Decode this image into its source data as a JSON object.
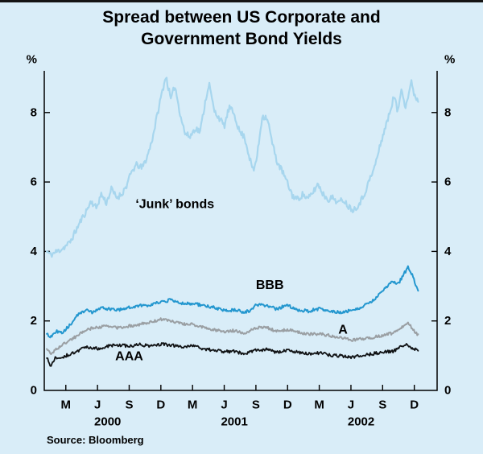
{
  "page": {
    "title_line1": "Spread between US Corporate and",
    "title_line2": "Government Bond Yields",
    "source": "Source: Bloomberg"
  },
  "chart_data": {
    "type": "line",
    "title": "Spread between US Corporate and Government Bond Yields",
    "ylabel": "%",
    "xlabel": "",
    "unit_label_left": "%",
    "unit_label_right": "%",
    "x_range": [
      2000.0,
      2003.1
    ],
    "y_range": [
      0,
      9.2
    ],
    "y_ticks": [
      0,
      2,
      4,
      6,
      8
    ],
    "x_ticks": [
      {
        "label": "M",
        "x": 2000.17
      },
      {
        "label": "J",
        "x": 2000.42
      },
      {
        "label": "S",
        "x": 2000.67
      },
      {
        "label": "D",
        "x": 2000.92
      },
      {
        "label": "M",
        "x": 2001.17
      },
      {
        "label": "J",
        "x": 2001.42
      },
      {
        "label": "S",
        "x": 2001.67
      },
      {
        "label": "D",
        "x": 2001.92
      },
      {
        "label": "M",
        "x": 2002.17
      },
      {
        "label": "J",
        "x": 2002.42
      },
      {
        "label": "S",
        "x": 2002.67
      },
      {
        "label": "D",
        "x": 2002.92
      }
    ],
    "year_labels": [
      {
        "label": "2000",
        "x": 2000.5
      },
      {
        "label": "2001",
        "x": 2001.5
      },
      {
        "label": "2002",
        "x": 2002.5
      }
    ],
    "background": "#d9edf8",
    "axis_color": "#000000",
    "series": [
      {
        "name": "'Junk' bonds",
        "id": "junk-bonds",
        "color": "#a7d6ee",
        "width": 2.2,
        "noise": 0.09,
        "points": [
          [
            2000.02,
            4.0
          ],
          [
            2000.05,
            3.9
          ],
          [
            2000.1,
            4.0
          ],
          [
            2000.15,
            4.1
          ],
          [
            2000.2,
            4.25
          ],
          [
            2000.25,
            4.6
          ],
          [
            2000.29,
            4.9
          ],
          [
            2000.33,
            5.15
          ],
          [
            2000.37,
            5.45
          ],
          [
            2000.41,
            5.25
          ],
          [
            2000.45,
            5.65
          ],
          [
            2000.49,
            5.4
          ],
          [
            2000.53,
            5.8
          ],
          [
            2000.57,
            5.55
          ],
          [
            2000.61,
            5.65
          ],
          [
            2000.65,
            5.9
          ],
          [
            2000.69,
            6.3
          ],
          [
            2000.73,
            6.5
          ],
          [
            2000.77,
            6.4
          ],
          [
            2000.81,
            6.7
          ],
          [
            2000.85,
            7.2
          ],
          [
            2000.89,
            7.9
          ],
          [
            2000.93,
            8.6
          ],
          [
            2000.96,
            9.05
          ],
          [
            2001.0,
            8.35
          ],
          [
            2001.03,
            8.8
          ],
          [
            2001.07,
            8.0
          ],
          [
            2001.11,
            7.4
          ],
          [
            2001.15,
            7.3
          ],
          [
            2001.19,
            7.55
          ],
          [
            2001.23,
            7.45
          ],
          [
            2001.27,
            8.3
          ],
          [
            2001.3,
            8.85
          ],
          [
            2001.34,
            8.05
          ],
          [
            2001.38,
            7.85
          ],
          [
            2001.42,
            7.6
          ],
          [
            2001.46,
            8.15
          ],
          [
            2001.5,
            7.95
          ],
          [
            2001.54,
            7.45
          ],
          [
            2001.58,
            7.3
          ],
          [
            2001.62,
            6.7
          ],
          [
            2001.65,
            6.3
          ],
          [
            2001.68,
            6.75
          ],
          [
            2001.72,
            7.9
          ],
          [
            2001.76,
            7.85
          ],
          [
            2001.8,
            7.1
          ],
          [
            2001.84,
            6.55
          ],
          [
            2001.88,
            6.3
          ],
          [
            2001.92,
            5.95
          ],
          [
            2001.96,
            5.6
          ],
          [
            2002.0,
            5.5
          ],
          [
            2002.04,
            5.65
          ],
          [
            2002.08,
            5.5
          ],
          [
            2002.12,
            5.7
          ],
          [
            2002.16,
            5.95
          ],
          [
            2002.2,
            5.65
          ],
          [
            2002.24,
            5.5
          ],
          [
            2002.28,
            5.55
          ],
          [
            2002.32,
            5.4
          ],
          [
            2002.36,
            5.5
          ],
          [
            2002.4,
            5.3
          ],
          [
            2002.44,
            5.2
          ],
          [
            2002.48,
            5.35
          ],
          [
            2002.52,
            5.6
          ],
          [
            2002.56,
            6.0
          ],
          [
            2002.6,
            6.35
          ],
          [
            2002.64,
            6.9
          ],
          [
            2002.68,
            7.45
          ],
          [
            2002.72,
            7.9
          ],
          [
            2002.76,
            8.5
          ],
          [
            2002.79,
            8.0
          ],
          [
            2002.82,
            8.75
          ],
          [
            2002.85,
            8.15
          ],
          [
            2002.88,
            8.6
          ],
          [
            2002.9,
            8.9
          ],
          [
            2002.92,
            8.5
          ],
          [
            2002.95,
            8.35
          ]
        ]
      },
      {
        "name": "BBB",
        "id": "bbb",
        "color": "#2497cf",
        "width": 2.0,
        "noise": 0.045,
        "points": [
          [
            2000.02,
            1.6
          ],
          [
            2000.06,
            1.55
          ],
          [
            2000.1,
            1.7
          ],
          [
            2000.14,
            1.65
          ],
          [
            2000.18,
            1.8
          ],
          [
            2000.22,
            1.95
          ],
          [
            2000.26,
            2.15
          ],
          [
            2000.3,
            2.25
          ],
          [
            2000.34,
            2.3
          ],
          [
            2000.38,
            2.25
          ],
          [
            2000.42,
            2.3
          ],
          [
            2000.46,
            2.4
          ],
          [
            2000.5,
            2.35
          ],
          [
            2000.58,
            2.3
          ],
          [
            2000.67,
            2.4
          ],
          [
            2000.75,
            2.45
          ],
          [
            2000.83,
            2.45
          ],
          [
            2000.92,
            2.55
          ],
          [
            2001.0,
            2.6
          ],
          [
            2001.08,
            2.5
          ],
          [
            2001.17,
            2.5
          ],
          [
            2001.25,
            2.45
          ],
          [
            2001.33,
            2.4
          ],
          [
            2001.42,
            2.3
          ],
          [
            2001.5,
            2.32
          ],
          [
            2001.58,
            2.25
          ],
          [
            2001.63,
            2.3
          ],
          [
            2001.67,
            2.45
          ],
          [
            2001.75,
            2.45
          ],
          [
            2001.83,
            2.35
          ],
          [
            2001.92,
            2.45
          ],
          [
            2002.0,
            2.32
          ],
          [
            2002.08,
            2.28
          ],
          [
            2002.17,
            2.35
          ],
          [
            2002.25,
            2.3
          ],
          [
            2002.33,
            2.25
          ],
          [
            2002.42,
            2.3
          ],
          [
            2002.5,
            2.4
          ],
          [
            2002.58,
            2.55
          ],
          [
            2002.63,
            2.7
          ],
          [
            2002.67,
            2.9
          ],
          [
            2002.71,
            3.0
          ],
          [
            2002.75,
            3.15
          ],
          [
            2002.79,
            3.05
          ],
          [
            2002.83,
            3.3
          ],
          [
            2002.87,
            3.55
          ],
          [
            2002.9,
            3.35
          ],
          [
            2002.93,
            3.05
          ],
          [
            2002.95,
            2.9
          ]
        ]
      },
      {
        "name": "A",
        "id": "a",
        "color": "#9a9fa3",
        "width": 2.0,
        "noise": 0.04,
        "points": [
          [
            2000.02,
            1.2
          ],
          [
            2000.05,
            1.05
          ],
          [
            2000.1,
            1.2
          ],
          [
            2000.14,
            1.3
          ],
          [
            2000.18,
            1.4
          ],
          [
            2000.25,
            1.55
          ],
          [
            2000.33,
            1.75
          ],
          [
            2000.42,
            1.82
          ],
          [
            2000.5,
            1.85
          ],
          [
            2000.58,
            1.8
          ],
          [
            2000.67,
            1.85
          ],
          [
            2000.75,
            1.9
          ],
          [
            2000.83,
            1.95
          ],
          [
            2000.92,
            2.05
          ],
          [
            2001.0,
            2.0
          ],
          [
            2001.08,
            1.92
          ],
          [
            2001.17,
            1.9
          ],
          [
            2001.25,
            1.82
          ],
          [
            2001.33,
            1.75
          ],
          [
            2001.42,
            1.7
          ],
          [
            2001.5,
            1.72
          ],
          [
            2001.58,
            1.65
          ],
          [
            2001.67,
            1.8
          ],
          [
            2001.75,
            1.82
          ],
          [
            2001.83,
            1.7
          ],
          [
            2001.92,
            1.75
          ],
          [
            2002.0,
            1.68
          ],
          [
            2002.08,
            1.62
          ],
          [
            2002.17,
            1.63
          ],
          [
            2002.25,
            1.58
          ],
          [
            2002.33,
            1.52
          ],
          [
            2002.42,
            1.45
          ],
          [
            2002.5,
            1.48
          ],
          [
            2002.58,
            1.52
          ],
          [
            2002.67,
            1.58
          ],
          [
            2002.75,
            1.65
          ],
          [
            2002.83,
            1.85
          ],
          [
            2002.87,
            1.95
          ],
          [
            2002.91,
            1.75
          ],
          [
            2002.95,
            1.6
          ]
        ]
      },
      {
        "name": "AAA",
        "id": "aaa",
        "color": "#101214",
        "width": 1.8,
        "noise": 0.045,
        "points": [
          [
            2000.02,
            0.95
          ],
          [
            2000.05,
            0.68
          ],
          [
            2000.09,
            0.95
          ],
          [
            2000.13,
            0.9
          ],
          [
            2000.17,
            1.0
          ],
          [
            2000.25,
            1.1
          ],
          [
            2000.33,
            1.25
          ],
          [
            2000.42,
            1.2
          ],
          [
            2000.5,
            1.28
          ],
          [
            2000.58,
            1.3
          ],
          [
            2000.67,
            1.28
          ],
          [
            2000.75,
            1.32
          ],
          [
            2000.83,
            1.28
          ],
          [
            2000.92,
            1.33
          ],
          [
            2001.0,
            1.3
          ],
          [
            2001.08,
            1.26
          ],
          [
            2001.17,
            1.28
          ],
          [
            2001.25,
            1.2
          ],
          [
            2001.33,
            1.16
          ],
          [
            2001.42,
            1.12
          ],
          [
            2001.5,
            1.12
          ],
          [
            2001.58,
            1.05
          ],
          [
            2001.67,
            1.15
          ],
          [
            2001.75,
            1.18
          ],
          [
            2001.83,
            1.1
          ],
          [
            2001.92,
            1.15
          ],
          [
            2002.0,
            1.1
          ],
          [
            2002.08,
            1.05
          ],
          [
            2002.17,
            1.08
          ],
          [
            2002.25,
            1.02
          ],
          [
            2002.33,
            1.0
          ],
          [
            2002.42,
            0.96
          ],
          [
            2002.5,
            1.0
          ],
          [
            2002.58,
            1.05
          ],
          [
            2002.67,
            1.1
          ],
          [
            2002.75,
            1.12
          ],
          [
            2002.83,
            1.28
          ],
          [
            2002.87,
            1.32
          ],
          [
            2002.91,
            1.2
          ],
          [
            2002.95,
            1.15
          ]
        ]
      }
    ],
    "annotations": [
      {
        "id": "junk-bonds-label",
        "text": "‘Junk’ bonds",
        "x": 2000.72,
        "y": 5.35
      },
      {
        "id": "bbb-label",
        "text": "BBB",
        "x": 2001.67,
        "y": 3.02
      },
      {
        "id": "a-label",
        "text": "A",
        "x": 2002.32,
        "y": 1.74
      },
      {
        "id": "aaa-label",
        "text": "AAA",
        "x": 2000.56,
        "y": 0.97
      }
    ],
    "legend_position": "inline-annotations",
    "grid": false,
    "render": {
      "seed": 11,
      "samples": 470,
      "draw_order": [
        "junk-bonds",
        "a",
        "aaa",
        "bbb"
      ]
    }
  }
}
